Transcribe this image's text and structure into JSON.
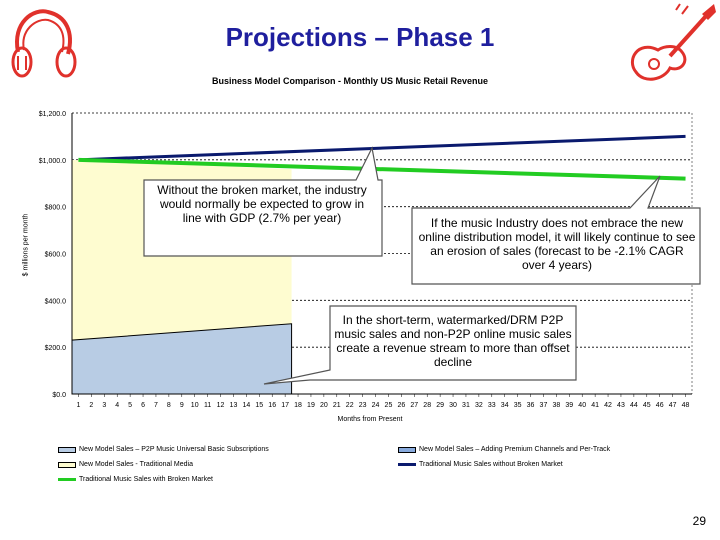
{
  "slide_title": "Projections – Phase 1",
  "page_number": "29",
  "colors": {
    "title": "#1f1f9e",
    "new_p2p": "#b8cce4",
    "traditional_media": "#fefcd0",
    "premium": "#88aadd",
    "without_broken": "#0a1a6e",
    "with_broken": "#22cc22",
    "icon_red": "#e0312b"
  },
  "icons": [
    "headphones-icon",
    "guitar-icon"
  ],
  "callouts": {
    "growth": "Without the broken market, the industry would normally be expected to grow in line with GDP (2.7% per year)",
    "erosion": "If the music Industry does not embrace the new online distribution model, it will likely continue to see an erosion of sales (forecast to be -2.1% CAGR over 4 years)",
    "offset": "In the short-term, watermarked/DRM P2P music sales and non-P2P online music sales create a revenue stream to more than offset decline"
  },
  "chart_data": {
    "type": "area",
    "title": "Business Model Comparison - Monthly US Music Retail Revenue",
    "xlabel": "Months from Present",
    "ylabel": "$ millions per month",
    "ylim": [
      0,
      1200
    ],
    "ytick_labels": [
      "$0.0",
      "$200.0",
      "$400.0",
      "$600.0",
      "$800.0",
      "$1,000.0",
      "$1,200.0"
    ],
    "yticks": [
      0,
      200,
      400,
      600,
      800,
      1000,
      1200
    ],
    "x": [
      1,
      2,
      3,
      4,
      5,
      6,
      7,
      8,
      9,
      10,
      11,
      12,
      13,
      14,
      15,
      16,
      17,
      18,
      19,
      20,
      21,
      22,
      23,
      24,
      25,
      26,
      27,
      28,
      29,
      30,
      31,
      32,
      33,
      34,
      35,
      36,
      37,
      38,
      39,
      40,
      41,
      42,
      43,
      44,
      45,
      46,
      47,
      48
    ],
    "grid": "horizontal dashed",
    "legend_placement": "bottom",
    "series": [
      {
        "name": "New Model Sales – P2P Music Universal Basic Subscriptions",
        "kind": "area",
        "points": [
          [
            1,
            230
          ],
          [
            17,
            300
          ]
        ]
      },
      {
        "name": "New Model Sales - Traditional Media",
        "kind": "area",
        "points": [
          [
            1,
            1000
          ],
          [
            17,
            960
          ]
        ]
      },
      {
        "name": "New Model Sales – Adding Premium Channels and Per-Track",
        "kind": "area",
        "points": []
      },
      {
        "name": "Traditional Music Sales without Broken Market",
        "kind": "line",
        "points": [
          [
            1,
            1000
          ],
          [
            48,
            1100
          ]
        ]
      },
      {
        "name": "Traditional Music Sales with Broken Market",
        "kind": "line",
        "points": [
          [
            1,
            1000
          ],
          [
            48,
            920
          ]
        ]
      }
    ]
  }
}
